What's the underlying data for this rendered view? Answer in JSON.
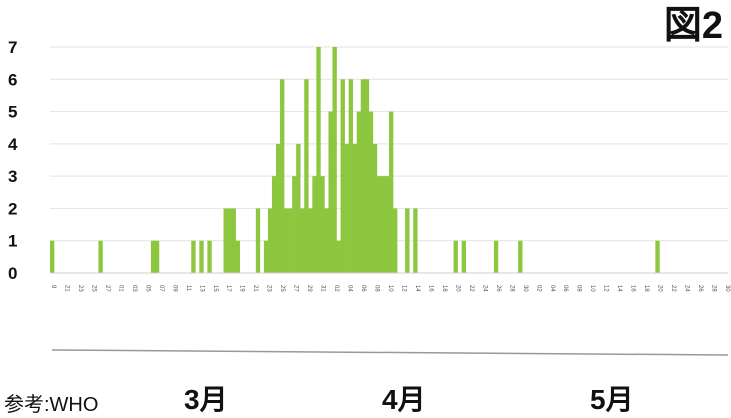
{
  "figure_label": "図2",
  "source": "参考:WHO",
  "months": [
    "3月",
    "4月",
    "5月"
  ],
  "chart_data": {
    "type": "bar",
    "ylim": [
      0,
      7
    ],
    "yticks": [
      0,
      1,
      2,
      3,
      4,
      5,
      6,
      7
    ],
    "grid": true,
    "bar_color": "#8dc63f",
    "values": [
      1,
      0,
      0,
      0,
      0,
      0,
      0,
      0,
      0,
      0,
      0,
      0,
      1,
      0,
      0,
      0,
      0,
      0,
      0,
      0,
      0,
      0,
      0,
      0,
      0,
      1,
      1,
      0,
      0,
      0,
      0,
      0,
      0,
      0,
      0,
      1,
      0,
      1,
      0,
      1,
      0,
      0,
      0,
      2,
      2,
      2,
      1,
      0,
      0,
      0,
      0,
      2,
      0,
      1,
      2,
      3,
      4,
      6,
      2,
      2,
      3,
      4,
      2,
      6,
      2,
      3,
      7,
      3,
      2,
      5,
      7,
      1,
      6,
      4,
      6,
      4,
      5,
      6,
      6,
      5,
      4,
      3,
      3,
      3,
      5,
      2,
      0,
      0,
      2,
      0,
      2,
      0,
      0,
      0,
      0,
      0,
      0,
      0,
      0,
      0,
      1,
      0,
      1,
      0,
      0,
      0,
      0,
      0,
      0,
      0,
      1,
      0,
      0,
      0,
      0,
      0,
      1,
      0,
      0,
      0,
      0,
      0,
      0,
      0,
      0,
      0,
      0,
      0,
      0,
      0,
      0,
      0,
      0,
      0,
      0,
      0,
      0,
      0,
      0,
      0,
      0,
      0,
      0,
      0,
      0,
      0,
      0,
      0,
      0,
      0,
      1,
      0,
      0,
      0,
      0,
      0,
      0,
      0,
      0,
      0,
      0,
      0,
      0,
      0,
      0,
      0,
      0,
      0
    ],
    "xticks": [
      "9",
      "21",
      "23",
      "25",
      "27",
      "01",
      "03",
      "05",
      "07",
      "09",
      "11",
      "13",
      "15",
      "17",
      "19",
      "21",
      "23",
      "25",
      "27",
      "29",
      "31",
      "02",
      "04",
      "06",
      "08",
      "10",
      "12",
      "14",
      "16",
      "18",
      "20",
      "22",
      "24",
      "26",
      "28",
      "30",
      "02",
      "04",
      "06",
      "08",
      "10",
      "12",
      "14",
      "16",
      "18",
      "20",
      "22",
      "24",
      "26",
      "28",
      "30"
    ]
  }
}
